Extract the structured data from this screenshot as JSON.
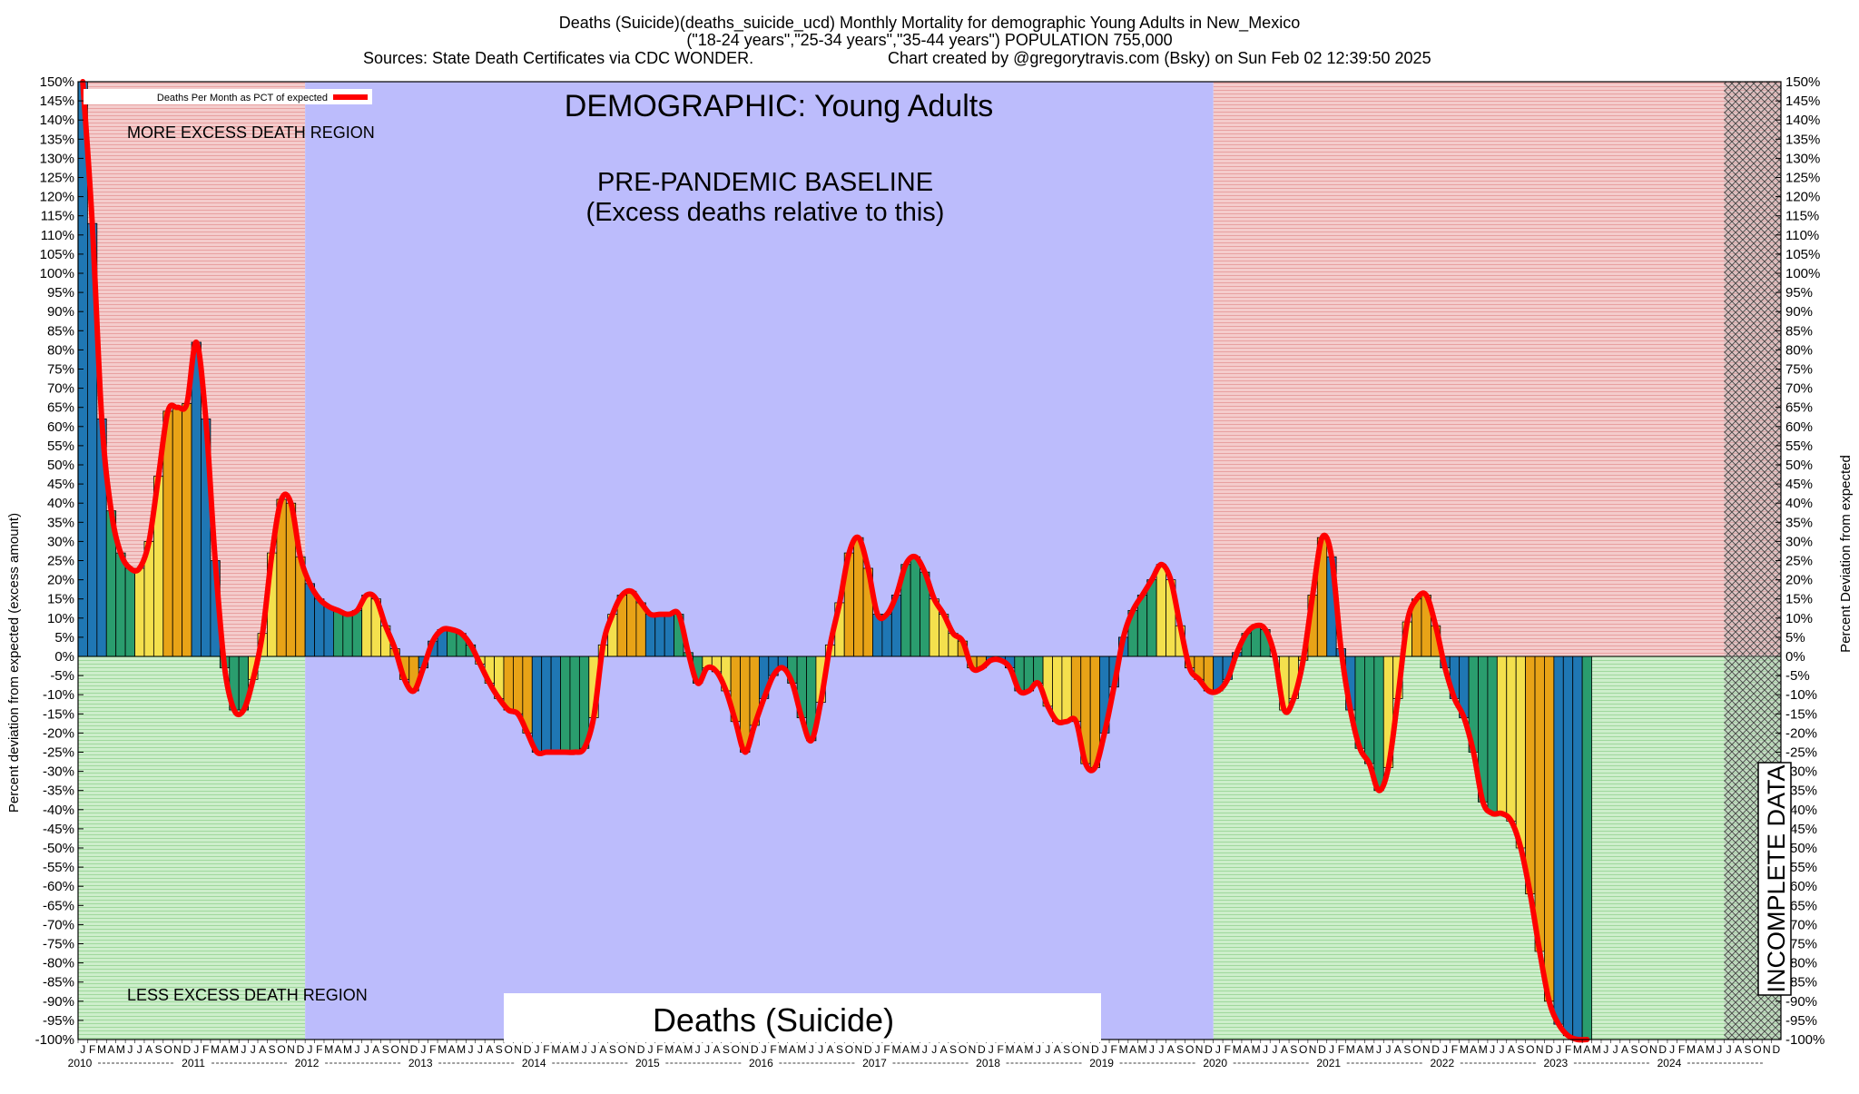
{
  "header": {
    "title": "Deaths (Suicide)(deaths_suicide_ucd) Monthly Mortality for demographic Young Adults in New_Mexico",
    "subtitle": "(\"18-24 years\",\"25-34 years\",\"35-44 years\") POPULATION 755,000",
    "sources": "Sources: State Death Certificates via CDC WONDER.",
    "credit": "Chart created by @gregorytravis.com (Bsky) on Sun Feb 02 12:39:50 2025"
  },
  "annotations": {
    "demographic": "DEMOGRAPHIC: Young Adults",
    "baseline_line1": "PRE-PANDEMIC BASELINE",
    "baseline_line2": "(Excess deaths relative to this)",
    "more_region": "MORE EXCESS DEATH REGION",
    "less_region": "LESS EXCESS DEATH REGION",
    "incomplete": "INCOMPLETE DATA",
    "cause_box": "Deaths (Suicide)"
  },
  "colors": {
    "excess_region": "#f2c4c4",
    "deficit_region": "#c8eec6",
    "baseline_region": "#bcbcfc",
    "line": "#ff0000",
    "bar_blue": "#1f77b4",
    "bar_green": "#2a9d6e",
    "bar_yellow": "#f4e04d",
    "bar_orange": "#e8a317",
    "incomplete": "#bbbbbb"
  },
  "chart_data": {
    "type": "bar",
    "legend": "Deaths Per Month as PCT of expected",
    "ylabel_left": "Percent deviation from expected (excess amount)",
    "ylabel_right": "Percent Deviation from expected",
    "ylim": [
      -100,
      150
    ],
    "ytick_step": 5,
    "grid": true,
    "legend_position": "top-left",
    "start": "2010-01",
    "month_letters": [
      "J",
      "F",
      "M",
      "A",
      "M",
      "J",
      "J",
      "A",
      "S",
      "O",
      "N",
      "D"
    ],
    "years": [
      "2010",
      "2011",
      "2012",
      "2013",
      "2014",
      "2015",
      "2016",
      "2017",
      "2018",
      "2019",
      "2020",
      "2021",
      "2022",
      "2023",
      "2024"
    ],
    "baseline_period": [
      "2012-01",
      "2019-12"
    ],
    "incomplete_from": "2024-07",
    "values": [
      150,
      113,
      62,
      38,
      27,
      23,
      23,
      30,
      47,
      64,
      65,
      66,
      82,
      62,
      25,
      -3,
      -14,
      -14,
      -6,
      6,
      27,
      41,
      40,
      26,
      19,
      15,
      13,
      12,
      11,
      12,
      16,
      15,
      8,
      2,
      -6,
      -9,
      -3,
      4,
      7,
      7,
      6,
      3,
      -2,
      -7,
      -11,
      -14,
      -15,
      -20,
      -25,
      -25,
      -25,
      -25,
      -25,
      -24,
      -16,
      3,
      11,
      16,
      17,
      14,
      11,
      11,
      11,
      11,
      1,
      -7,
      -3,
      -4,
      -9,
      -17,
      -25,
      -18,
      -11,
      -5,
      -3,
      -7,
      -16,
      -22,
      -12,
      3,
      14,
      27,
      31,
      23,
      11,
      11,
      16,
      24,
      26,
      22,
      15,
      11,
      6,
      4,
      -3,
      -3,
      -1,
      -1,
      -3,
      -9,
      -9,
      -7,
      -13,
      -17,
      -17,
      -17,
      -28,
      -29,
      -20,
      -8,
      5,
      12,
      16,
      20,
      24,
      20,
      8,
      -3,
      -6,
      -9,
      -9,
      -6,
      1,
      6,
      8,
      7,
      0,
      -14,
      -11,
      -1,
      16,
      31,
      26,
      2,
      -14,
      -24,
      -28,
      -35,
      -29,
      -11,
      9,
      15,
      16,
      8,
      -3,
      -11,
      -16,
      -25,
      -38,
      -41,
      -41,
      -43,
      -50,
      -62,
      -77,
      -90,
      -96,
      -99,
      -100,
      -100
    ]
  }
}
